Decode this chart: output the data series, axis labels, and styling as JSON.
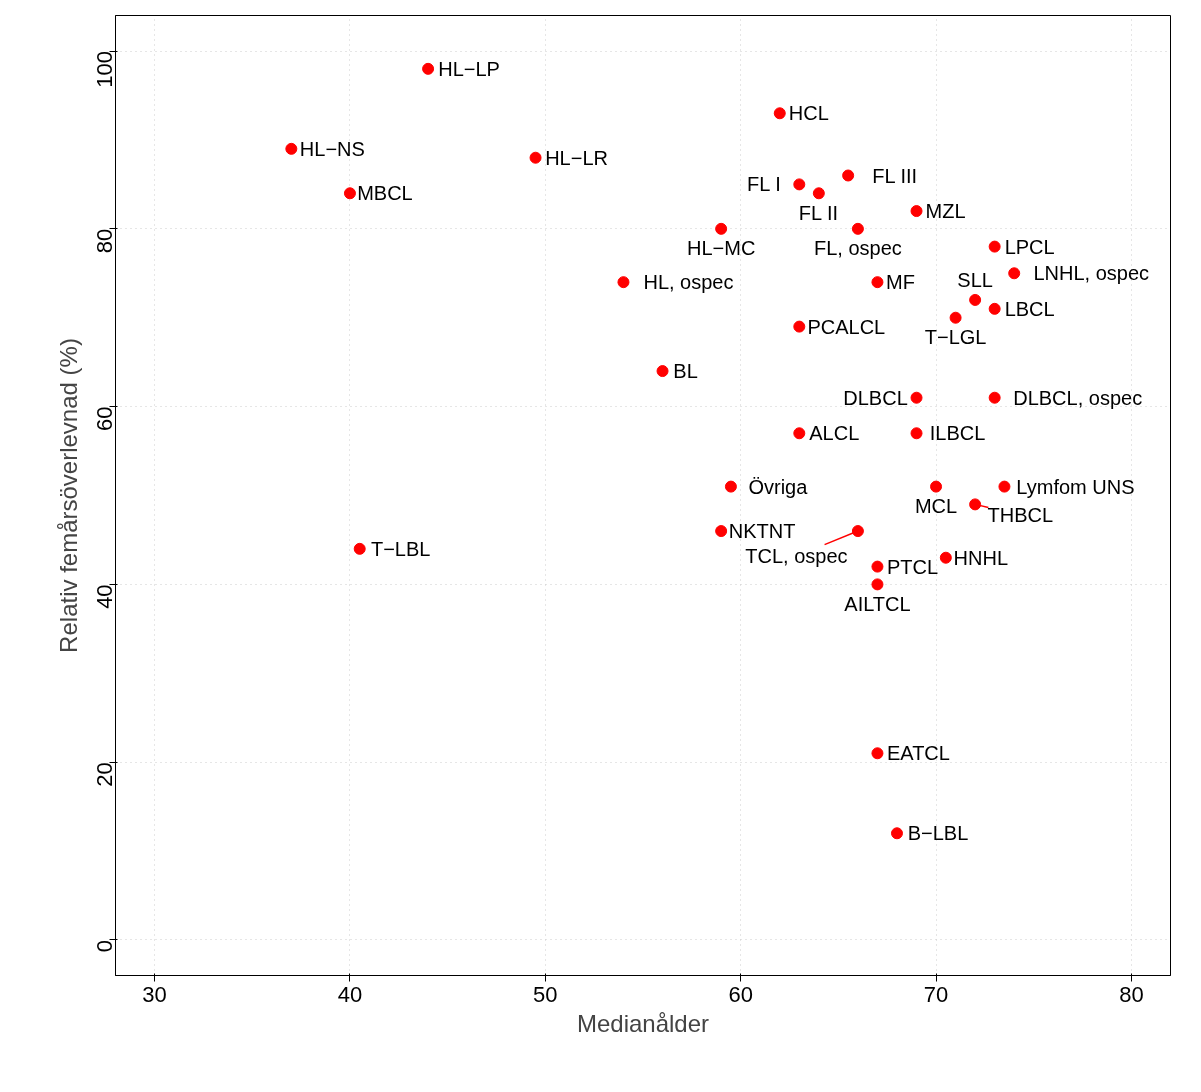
{
  "chart_data": {
    "type": "scatter",
    "xlabel": "Medianålder",
    "ylabel": "Relativ femårsöverlevnad (%)",
    "xlim": [
      28,
      82
    ],
    "ylim": [
      -4,
      104
    ],
    "xticks": [
      30,
      40,
      50,
      60,
      70,
      80
    ],
    "yticks": [
      0,
      20,
      40,
      60,
      80,
      100
    ],
    "grid": true,
    "marker": "circle",
    "series": [
      {
        "color": "#ff0000",
        "x": [
          44,
          62,
          37,
          49.5,
          40,
          63,
          65.5,
          64,
          69,
          73,
          73,
          59,
          54,
          66,
          67,
          74,
          72,
          71,
          63,
          56,
          69,
          73,
          63,
          69,
          59.5,
          73.5,
          70,
          72,
          59,
          66,
          70.5,
          67,
          67,
          67,
          68,
          40.5
        ],
        "values": [
          98,
          93,
          89,
          88,
          84,
          85,
          86,
          84,
          82,
          71,
          78,
          80,
          74,
          80,
          74,
          75,
          72,
          70,
          69,
          64,
          61,
          61,
          57,
          57,
          51,
          51,
          51,
          49,
          46,
          46,
          43,
          42,
          40,
          21,
          12,
          44
        ]
      }
    ],
    "annotations": [
      {
        "text": "HL−LP",
        "x": 44,
        "y": 98
      },
      {
        "text": "HCL",
        "x": 62,
        "y": 93
      },
      {
        "text": "HL−NS",
        "x": 37,
        "y": 89
      },
      {
        "text": "HL−LR",
        "x": 49.5,
        "y": 88
      },
      {
        "text": "MBCL",
        "x": 40,
        "y": 84
      },
      {
        "text": "FL I",
        "x": 63,
        "y": 85
      },
      {
        "text": "FL III",
        "x": 65.5,
        "y": 86
      },
      {
        "text": "FL II",
        "x": 64,
        "y": 84
      },
      {
        "text": "MZL",
        "x": 69,
        "y": 82
      },
      {
        "text": "LBCL",
        "x": 73,
        "y": 71
      },
      {
        "text": "LPCL",
        "x": 73,
        "y": 78
      },
      {
        "text": "HL−MC",
        "x": 59,
        "y": 80
      },
      {
        "text": "HL, ospec",
        "x": 54,
        "y": 74
      },
      {
        "text": "FL, ospec",
        "x": 66,
        "y": 80
      },
      {
        "text": "MF",
        "x": 67,
        "y": 74
      },
      {
        "text": "LNHL, ospec",
        "x": 74,
        "y": 75
      },
      {
        "text": "SLL",
        "x": 72,
        "y": 72
      },
      {
        "text": "T−LGL",
        "x": 71,
        "y": 70
      },
      {
        "text": "PCALCL",
        "x": 63,
        "y": 69
      },
      {
        "text": "BL",
        "x": 56,
        "y": 64
      },
      {
        "text": "DLBCL",
        "x": 69,
        "y": 61
      },
      {
        "text": "DLBCL, ospec",
        "x": 73,
        "y": 61
      },
      {
        "text": "ALCL",
        "x": 63,
        "y": 57
      },
      {
        "text": "ILBCL",
        "x": 69,
        "y": 57
      },
      {
        "text": "Övriga",
        "x": 59.5,
        "y": 51
      },
      {
        "text": "Lymfom UNS",
        "x": 73.5,
        "y": 51
      },
      {
        "text": "MCL",
        "x": 70,
        "y": 51
      },
      {
        "text": "THBCL",
        "x": 72,
        "y": 49
      },
      {
        "text": "NKTNT",
        "x": 59,
        "y": 46
      },
      {
        "text": "TCL, ospec",
        "x": 66,
        "y": 46
      },
      {
        "text": "HNHL",
        "x": 70.5,
        "y": 43
      },
      {
        "text": "PTCL",
        "x": 67,
        "y": 42
      },
      {
        "text": "AILTCL",
        "x": 67,
        "y": 40
      },
      {
        "text": "EATCL",
        "x": 67,
        "y": 21
      },
      {
        "text": "B−LBL",
        "x": 68,
        "y": 12
      },
      {
        "text": "T−LBL",
        "x": 40.5,
        "y": 44
      }
    ]
  }
}
